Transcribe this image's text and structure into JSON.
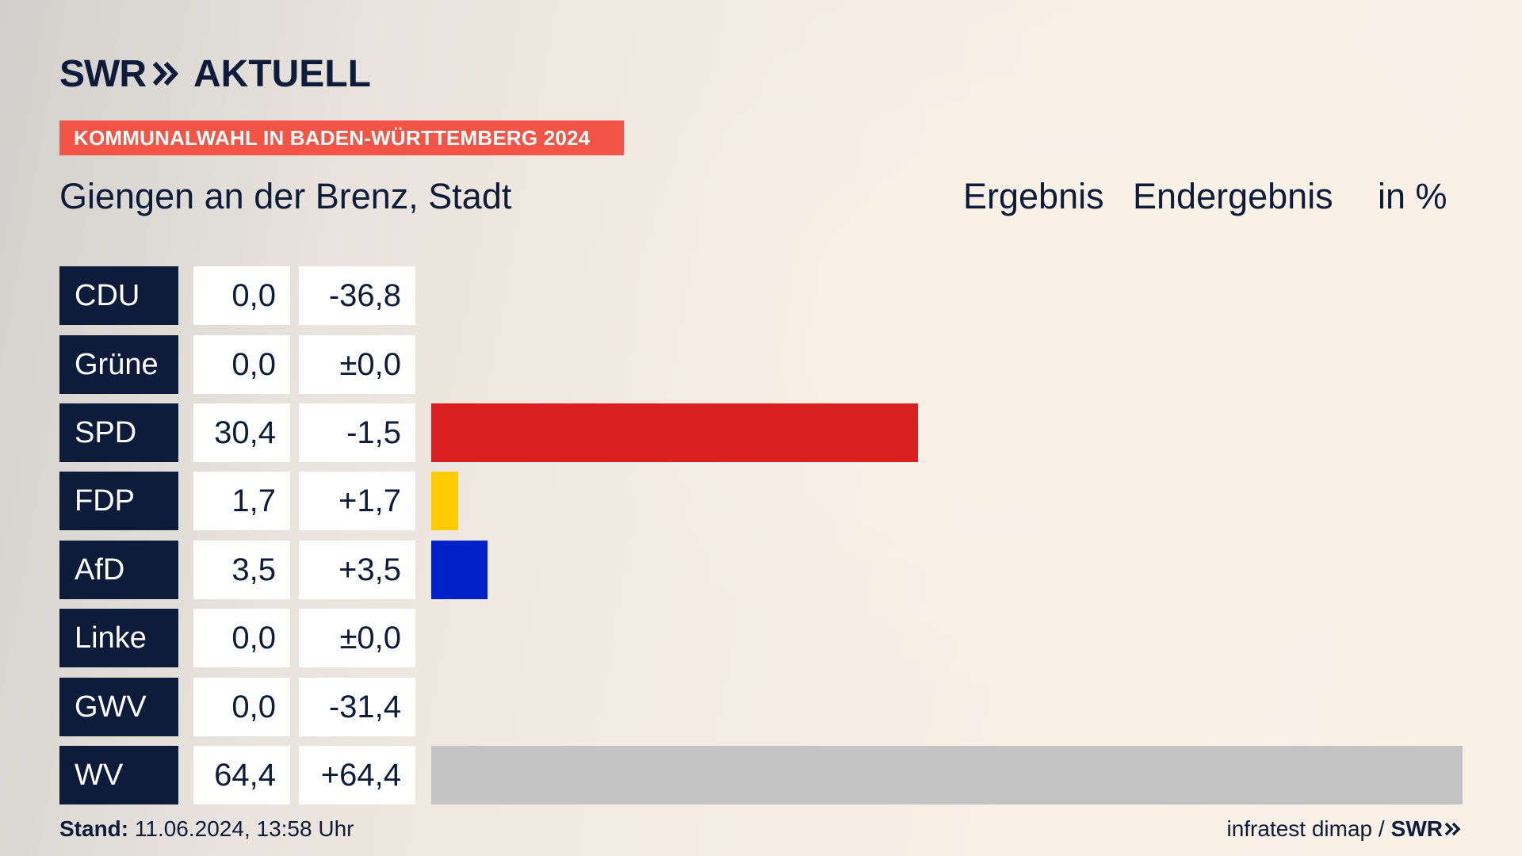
{
  "header": {
    "logo_brand": "SWR",
    "logo_product": "AKTUELL",
    "banner": "KOMMUNALWAHL IN BADEN-WÜRTTEMBERG 2024",
    "city": "Giengen an der Brenz, Stadt",
    "col_result": "Ergebnis",
    "col_status": "Endergebnis",
    "col_unit": "in %"
  },
  "colors": {
    "navy": "#0c1c3a",
    "banner": "#f25545"
  },
  "chart_data": {
    "type": "bar",
    "orientation": "horizontal",
    "title": "Giengen an der Brenz, Stadt",
    "unit": "%",
    "xlim": [
      0,
      64.4
    ],
    "categories": [
      "CDU",
      "Grüne",
      "SPD",
      "FDP",
      "AfD",
      "Linke",
      "GWV",
      "WV"
    ],
    "values": [
      0.0,
      0.0,
      30.4,
      1.7,
      3.5,
      0.0,
      0.0,
      64.4
    ],
    "value_labels": [
      "0,0",
      "0,0",
      "30,4",
      "1,7",
      "3,5",
      "0,0",
      "0,0",
      "64,4"
    ],
    "diff_labels": [
      "-36,8",
      "±0,0",
      "-1,5",
      "+1,7",
      "+3,5",
      "±0,0",
      "-31,4",
      "+64,4"
    ],
    "bar_colors": [
      "#000000",
      "#1aa037",
      "#d91f1f",
      "#ffcc00",
      "#0021c8",
      "#be3075",
      "#8a8a8a",
      "#c4c4c4"
    ]
  },
  "footer": {
    "stand_label": "Stand:",
    "stand_value": "11.06.2024, 13:58 Uhr",
    "source": "infratest dimap /",
    "source_logo": "SWR"
  }
}
